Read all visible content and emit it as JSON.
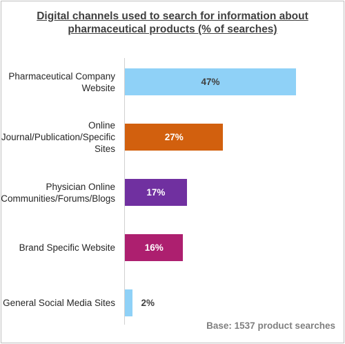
{
  "chart_data": {
    "type": "bar",
    "orientation": "horizontal",
    "title_lines": [
      "Digital channels used to search for information about",
      "pharmaceutical products (% of searches)"
    ],
    "categories": [
      [
        "Pharmaceutical Company",
        "Website"
      ],
      [
        "Online",
        "Journal/Publication/Specific",
        "Sites"
      ],
      [
        "Physician Online",
        "Communities/Forums/Blogs"
      ],
      [
        "Brand Specific Website"
      ],
      [
        "General Social Media Sites"
      ]
    ],
    "values": [
      47,
      27,
      17,
      16,
      2
    ],
    "value_labels": [
      "47%",
      "27%",
      "17%",
      "16%",
      "2%"
    ],
    "bar_colors": [
      "#8fd1f7",
      "#d2600e",
      "#7030a0",
      "#ad1f6f",
      "#8fd1f7"
    ],
    "value_label_colors": [
      "#404040",
      "#ffffff",
      "#ffffff",
      "#ffffff",
      "#404040"
    ],
    "value_label_inside": [
      true,
      true,
      true,
      true,
      false
    ],
    "xlim": [
      0,
      47
    ],
    "footnote": "Base: 1537 product searches",
    "grid": false,
    "legend": "none"
  }
}
